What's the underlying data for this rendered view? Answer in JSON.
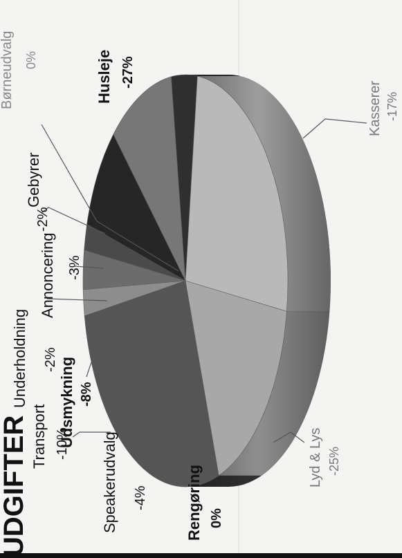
{
  "chart_data": {
    "type": "pie",
    "title": "UDGIFTER",
    "rotation": "page rotated 90° counter-clockwise",
    "slices": [
      {
        "label": "Husleje",
        "percent_label": "-27%",
        "value": 27
      },
      {
        "label": "Kasserer",
        "percent_label": "-17%",
        "value": 17
      },
      {
        "label": "Lyd & Lys",
        "percent_label": "-25%",
        "value": 25
      },
      {
        "label": "Rengøring",
        "percent_label": "0%",
        "value": 0
      },
      {
        "label": "Speakerudvalg",
        "percent_label": "-4%",
        "value": 4
      },
      {
        "label": "Transport",
        "percent_label": "-10%",
        "value": 10
      },
      {
        "label": "Udsmykning",
        "percent_label": "-8%",
        "value": 8
      },
      {
        "label": "Underholdning",
        "percent_label": "-2%",
        "value": 2
      },
      {
        "label": "Annoncering",
        "percent_label": "-3%",
        "value": 3
      },
      {
        "label": "Gebyrer",
        "percent_label": "-2%",
        "value": 2
      },
      {
        "label": "Børneudvalg",
        "percent_label": "0%",
        "value": 0
      }
    ],
    "colors": {
      "Husleje": "#555555",
      "Kasserer": "#a8a8a8",
      "Lyd & Lys": "#b9b9b9",
      "Rengøring": "#cfcfcf",
      "Speakerudvalg": "#2f2f2f",
      "Transport": "#777777",
      "Udsmykning": "#262626",
      "Underholdning": "#4a4a4a",
      "Annoncering": "#6c6c6c",
      "Gebyrer": "#8d8d8d",
      "Børneudvalg": "#bdbdbd"
    }
  }
}
